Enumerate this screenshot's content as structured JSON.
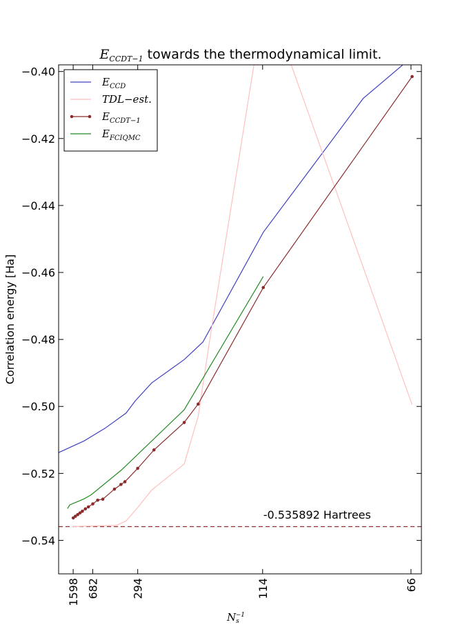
{
  "chart_data": {
    "type": "line",
    "title_main": "E",
    "title_sub": "CCDT−1",
    "title_rest": " towards the thermodynamical limit.",
    "xlabel_main": "N",
    "xlabel_sub": "s",
    "xlabel_sup": "−1",
    "ylabel": "Correlation energy [Ha]",
    "xlim": [
      0.0,
      0.0156
    ],
    "ylim": [
      -0.55,
      -0.398
    ],
    "x_ticks": [
      {
        "value": 0.000626,
        "label": "1598"
      },
      {
        "value": 0.001466,
        "label": "682"
      },
      {
        "value": 0.003401,
        "label": "294"
      },
      {
        "value": 0.008772,
        "label": "114"
      },
      {
        "value": 0.015152,
        "label": "66"
      }
    ],
    "y_ticks": [
      {
        "value": -0.4,
        "label": "−0.40"
      },
      {
        "value": -0.42,
        "label": "−0.42"
      },
      {
        "value": -0.44,
        "label": "−0.44"
      },
      {
        "value": -0.46,
        "label": "−0.46"
      },
      {
        "value": -0.48,
        "label": "−0.48"
      },
      {
        "value": -0.5,
        "label": "−0.50"
      },
      {
        "value": -0.52,
        "label": "−0.52"
      },
      {
        "value": -0.54,
        "label": "−0.54"
      }
    ],
    "legend_position": "top-left",
    "series": [
      {
        "name_main": "E",
        "name_sub": "CCD",
        "color": "#4040bf",
        "marker": false,
        "x": [
          0.0,
          0.0011,
          0.002,
          0.0029,
          0.0033,
          0.004,
          0.0054,
          0.0062,
          0.0088,
          0.0131,
          0.0148
        ],
        "y": [
          -0.5138,
          -0.5103,
          -0.5065,
          -0.502,
          -0.4983,
          -0.493,
          -0.486,
          -0.4808,
          -0.448,
          -0.408,
          -0.398
        ]
      },
      {
        "name_main": "TDL−est.",
        "name_sub": "",
        "color": "#ffbfbf",
        "marker": false,
        "x": [
          0.0006,
          0.0025,
          0.0029,
          0.0034,
          0.004,
          0.0054,
          0.006,
          0.0065,
          0.0084,
          0.01,
          0.0152
        ],
        "y": [
          -0.5359,
          -0.5355,
          -0.5342,
          -0.5302,
          -0.525,
          -0.5172,
          -0.503,
          -0.48,
          -0.398,
          -0.398,
          -0.4995
        ]
      },
      {
        "name_main": "E",
        "name_sub": "CCDT−1",
        "color": "#8b2b2b",
        "marker": true,
        "x": [
          0.00063,
          0.00072,
          0.00082,
          0.00092,
          0.00102,
          0.00115,
          0.00128,
          0.00147,
          0.00168,
          0.0019,
          0.0024,
          0.00268,
          0.00285,
          0.0034,
          0.0041,
          0.0054,
          0.006,
          0.0088,
          0.0152
        ],
        "y": [
          -0.5333,
          -0.5328,
          -0.5323,
          -0.5318,
          -0.5313,
          -0.5306,
          -0.53,
          -0.5291,
          -0.528,
          -0.5277,
          -0.5247,
          -0.5233,
          -0.5225,
          -0.5185,
          -0.513,
          -0.5048,
          -0.4993,
          -0.4645,
          -0.4015
        ]
      },
      {
        "name_main": "E",
        "name_sub": "FCIQMC",
        "color": "#228b22",
        "marker": false,
        "x": [
          0.00038,
          0.00048,
          0.0011,
          0.0014,
          0.0027,
          0.0054,
          0.0088
        ],
        "y": [
          -0.5305,
          -0.5294,
          -0.5276,
          -0.5264,
          -0.519,
          -0.501,
          -0.4612
        ]
      }
    ],
    "reference_line": {
      "y": -0.535892,
      "color": "#8b2b2b",
      "style": "dashed"
    },
    "annotation": {
      "text": "-0.535892 Hartrees",
      "x": 0.0088,
      "y": -0.5335
    }
  }
}
